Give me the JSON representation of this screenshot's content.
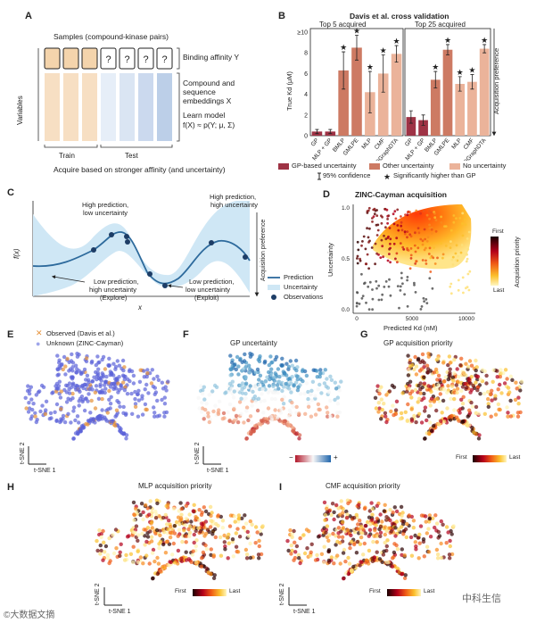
{
  "panels": {
    "A": {
      "label": "A",
      "samples_title": "Samples (compound-kinase pairs)",
      "variables_label": "Variables",
      "binding_affinity": "Binding affinity Y",
      "embeddings": [
        "Compound and",
        "sequence",
        "embeddings X"
      ],
      "learn_model": [
        "Learn model",
        "f(X) ≈ p(Y; μ, Σ)"
      ],
      "unknown_mark": "?",
      "train_label": "Train",
      "test_label": "Test",
      "acquire_text": "Acquire based on stronger affinity (and uncertainty)"
    },
    "B": {
      "label": "B",
      "title": "Davis et al. cross validation",
      "top5_title": "Top 5 acquired",
      "top25_title": "Top 25 acquired",
      "ylabel": "True Kd (μM)",
      "acq_pref": "Acquisition preference",
      "y_ticks": [
        "≥10",
        "8",
        "6",
        "4",
        "2",
        "0"
      ],
      "legend": {
        "gp": "GP-based uncertainty",
        "other": "Other uncertainty",
        "none": "No uncertainty",
        "ci": "95% confidence",
        "sig": "Significantly higher than GP"
      },
      "colors": {
        "gp": "#9e3345",
        "other": "#cd7a63",
        "none": "#ebb39a"
      }
    },
    "C": {
      "label": "C",
      "ylabel": "f(x)",
      "xlabel": "x",
      "acq_pref": "Acquisition preference",
      "ann_high_low": [
        "High prediction,",
        "low uncertainty"
      ],
      "ann_high_high": [
        "High prediction,",
        "high uncertainty"
      ],
      "ann_low_high": [
        "Low prediction,",
        "high uncertainty",
        "(Explore)"
      ],
      "ann_low_low": [
        "Low prediction,",
        "low uncertainty",
        "(Exploit)"
      ],
      "legend": [
        "Prediction",
        "Uncertainty",
        "Observations"
      ]
    },
    "D": {
      "label": "D",
      "title": "ZINC-Cayman acquisition",
      "xlabel": "Predicted Kd (nM)",
      "ylabel": "Uncertainty",
      "x_ticks": [
        "0",
        "5000",
        "10000"
      ],
      "y_ticks": [
        "1.0",
        "0.5",
        "0.0"
      ],
      "cbar_top": "First",
      "cbar_bottom": "Last",
      "cbar_label": "Acquisition priority"
    },
    "E": {
      "label": "E",
      "legend_observed": "Observed (Davis et al.)",
      "legend_unknown": "Unknown (ZINC-Cayman)",
      "tsne1": "t-SNE 1",
      "tsne2": "t-SNE 2"
    },
    "F": {
      "label": "F",
      "title": "GP uncertainty",
      "cbar_minus": "−",
      "cbar_plus": "+",
      "tsne1": "t-SNE 1",
      "tsne2": "t-SNE 2"
    },
    "G": {
      "label": "G",
      "title": "GP acquisition priority",
      "cbar_first": "First",
      "cbar_last": "Last"
    },
    "H": {
      "label": "H",
      "title": "MLP acquisition priority",
      "cbar_first": "First",
      "cbar_last": "Last",
      "tsne1": "t-SNE 1",
      "tsne2": "t-SNE 2"
    },
    "I": {
      "label": "I",
      "title": "CMF acquisition priority",
      "cbar_first": "First",
      "cbar_last": "Last",
      "tsne1": "t-SNE 1",
      "tsne2": "t-SNE 2"
    }
  },
  "watermarks": {
    "left": "©大数据文摘",
    "right": "中科生信"
  },
  "chart_data": [
    {
      "type": "bar",
      "title": "Top 5 acquired",
      "ylabel": "True Kd (μM)",
      "ylim": [
        0,
        10
      ],
      "categories": [
        "GP",
        "MLP + GP",
        "BMLP",
        "GMLPE",
        "MLP",
        "CMF",
        "DGraphDTA"
      ],
      "values": [
        0.4,
        0.4,
        6.3,
        8.5,
        4.2,
        6.0,
        7.9
      ],
      "err": [
        0.2,
        0.2,
        1.8,
        1.2,
        2.0,
        1.8,
        0.8
      ],
      "group": [
        "gp",
        "gp",
        "other",
        "other",
        "none",
        "none",
        "none"
      ],
      "significant": [
        false,
        false,
        true,
        true,
        true,
        true,
        true
      ]
    },
    {
      "type": "bar",
      "title": "Top 25 acquired",
      "ylabel": "True Kd (μM)",
      "ylim": [
        0,
        10
      ],
      "categories": [
        "GP",
        "MLP + GP",
        "BMLP",
        "GMLPE",
        "MLP",
        "CMF",
        "DGraphDTA"
      ],
      "values": [
        1.8,
        1.5,
        5.4,
        8.3,
        5.0,
        5.2,
        8.4
      ],
      "err": [
        0.6,
        0.5,
        0.8,
        0.5,
        0.7,
        0.7,
        0.4
      ],
      "group": [
        "gp",
        "gp",
        "other",
        "other",
        "none",
        "none",
        "none"
      ],
      "significant": [
        false,
        false,
        true,
        true,
        true,
        true,
        true
      ]
    }
  ]
}
